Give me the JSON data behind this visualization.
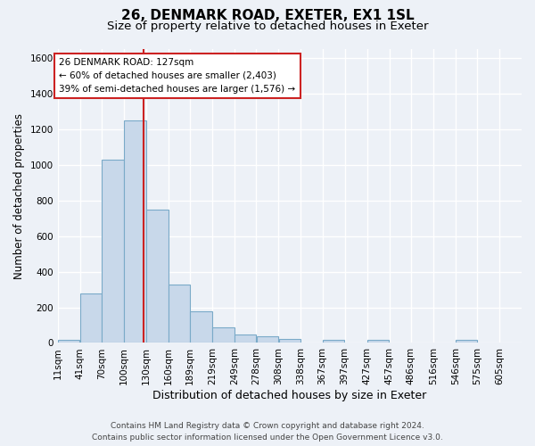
{
  "title1": "26, DENMARK ROAD, EXETER, EX1 1SL",
  "title2": "Size of property relative to detached houses in Exeter",
  "xlabel": "Distribution of detached houses by size in Exeter",
  "ylabel": "Number of detached properties",
  "bin_labels": [
    "11sqm",
    "41sqm",
    "70sqm",
    "100sqm",
    "130sqm",
    "160sqm",
    "189sqm",
    "219sqm",
    "249sqm",
    "278sqm",
    "308sqm",
    "338sqm",
    "367sqm",
    "397sqm",
    "427sqm",
    "457sqm",
    "486sqm",
    "516sqm",
    "546sqm",
    "575sqm",
    "605sqm"
  ],
  "bin_edges": [
    11,
    41,
    70,
    100,
    130,
    160,
    189,
    219,
    249,
    278,
    308,
    338,
    367,
    397,
    427,
    457,
    486,
    516,
    546,
    575,
    605,
    635
  ],
  "bar_heights": [
    15,
    280,
    1030,
    1250,
    750,
    330,
    180,
    85,
    45,
    35,
    20,
    0,
    15,
    0,
    15,
    0,
    0,
    0,
    15,
    0,
    0
  ],
  "bar_color": "#c8d8ea",
  "bar_edge_color": "#7aaac8",
  "property_value": 127,
  "vline_color": "#cc2222",
  "annotation_text": "26 DENMARK ROAD: 127sqm\n← 60% of detached houses are smaller (2,403)\n39% of semi-detached houses are larger (1,576) →",
  "annotation_box_color": "#ffffff",
  "annotation_box_edge_color": "#cc2222",
  "ylim": [
    0,
    1650
  ],
  "yticks": [
    0,
    200,
    400,
    600,
    800,
    1000,
    1200,
    1400,
    1600
  ],
  "footer_line1": "Contains HM Land Registry data © Crown copyright and database right 2024.",
  "footer_line2": "Contains public sector information licensed under the Open Government Licence v3.0.",
  "background_color": "#edf1f7",
  "grid_color": "#ffffff",
  "title1_fontsize": 11,
  "title2_fontsize": 9.5,
  "xlabel_fontsize": 9,
  "ylabel_fontsize": 8.5,
  "tick_fontsize": 7.5,
  "annotation_fontsize": 7.5,
  "footer_fontsize": 6.5
}
